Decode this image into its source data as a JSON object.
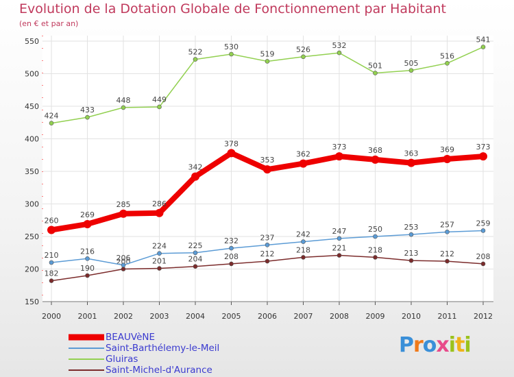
{
  "title": "Evolution de la Dotation Globale de Fonctionnement par Habitant",
  "subtitle": "(en € et par an)",
  "logo": "Proxiti",
  "colors": {
    "title": "#c0395c",
    "axis": "#ff0000",
    "grid": "#e2e2e2",
    "legend_text": "#3a3acf"
  },
  "chart_data": {
    "type": "line",
    "title": "Evolution de la Dotation Globale de Fonctionnement par Habitant",
    "subtitle": "(en € et par an)",
    "xlabel": "",
    "ylabel": "",
    "ylim": [
      150,
      550
    ],
    "y_ticks": [
      150,
      200,
      250,
      300,
      350,
      400,
      450,
      500,
      550
    ],
    "grid": true,
    "legend_position": "bottom-left",
    "categories": [
      "2000",
      "2001",
      "2002",
      "2003",
      "2004",
      "2005",
      "2006",
      "2007",
      "2008",
      "2009",
      "2010",
      "2011",
      "2012"
    ],
    "series": [
      {
        "name": "BEAUVèNE",
        "color": "#ee0000",
        "values": [
          260,
          269,
          285,
          286,
          342,
          378,
          353,
          362,
          373,
          368,
          363,
          369,
          373
        ]
      },
      {
        "name": "Saint-Barthélemy-le-Meil",
        "color": "#5b9bd5",
        "values": [
          210,
          216,
          206,
          224,
          225,
          232,
          237,
          242,
          247,
          250,
          253,
          257,
          259
        ]
      },
      {
        "name": "Gluiras",
        "color": "#92d050",
        "values": [
          424,
          433,
          448,
          449,
          522,
          530,
          519,
          526,
          532,
          501,
          505,
          516,
          541
        ]
      },
      {
        "name": "Saint-Michel-d'Aurance",
        "color": "#7b2b2b",
        "values": [
          182,
          190,
          200,
          201,
          204,
          208,
          212,
          218,
          221,
          218,
          213,
          212,
          208
        ]
      }
    ]
  }
}
